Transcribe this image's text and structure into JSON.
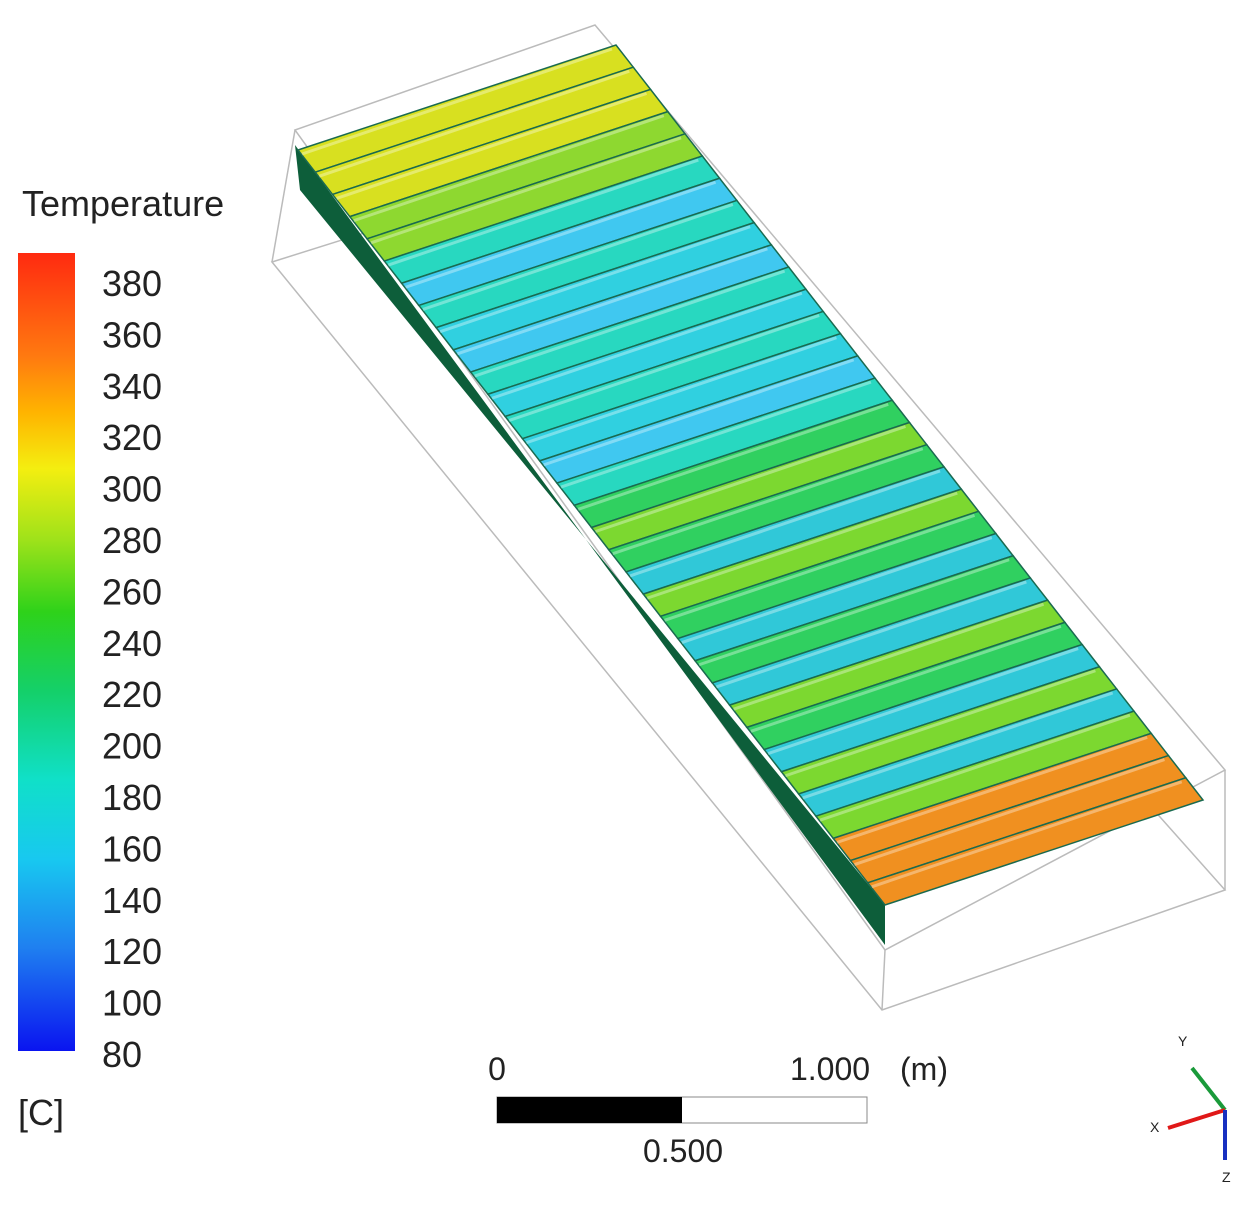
{
  "legend": {
    "title": "Temperature",
    "ticks": [
      "380",
      "360",
      "340",
      "320",
      "300",
      "280",
      "260",
      "240",
      "220",
      "200",
      "180",
      "160",
      "140",
      "120",
      "100",
      "80"
    ],
    "unit": "[C]"
  },
  "scale_bar": {
    "start": "0",
    "end": "1.000",
    "unit": "(m)",
    "mid": "0.500"
  },
  "triad": {
    "y": "Y",
    "x": "X",
    "z": "Z"
  }
}
